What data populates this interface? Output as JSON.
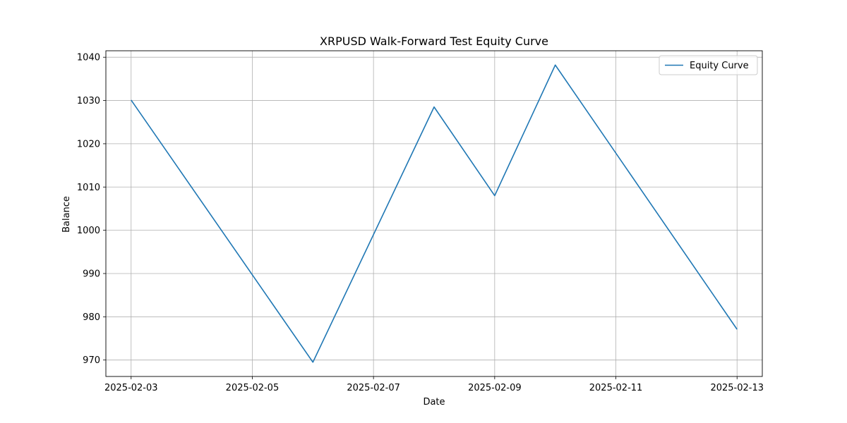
{
  "chart_data": {
    "type": "line",
    "title": "XRPUSD Walk-Forward Test Equity Curve",
    "xlabel": "Date",
    "ylabel": "Balance",
    "x": [
      "2025-02-03",
      "2025-02-06",
      "2025-02-08",
      "2025-02-09",
      "2025-02-10",
      "2025-02-13"
    ],
    "series": [
      {
        "name": "Equity Curve",
        "color": "#1f77b4",
        "values": [
          1030.1,
          969.5,
          1028.5,
          1008.0,
          1038.2,
          977.1
        ]
      }
    ],
    "xlim": [
      "2025-02-02T14:00",
      "2025-02-13T10:00"
    ],
    "ylim": [
      966.2,
      1041.5
    ],
    "x_ticks": [
      "2025-02-03",
      "2025-02-05",
      "2025-02-07",
      "2025-02-09",
      "2025-02-11",
      "2025-02-13"
    ],
    "y_ticks": [
      970,
      980,
      990,
      1000,
      1010,
      1020,
      1030,
      1040
    ],
    "grid": true,
    "legend_position": "top-right"
  }
}
